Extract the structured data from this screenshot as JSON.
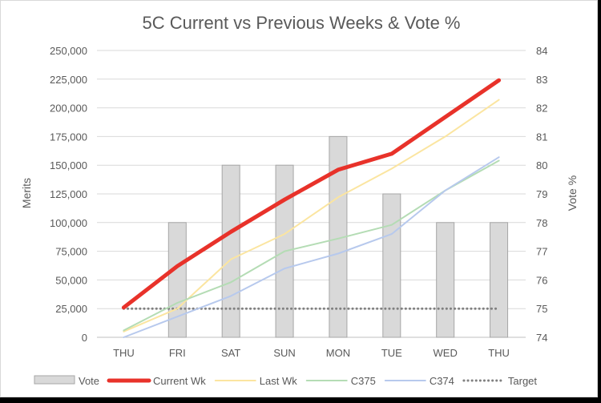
{
  "chart_data": {
    "type": "bar",
    "title": "5C Current vs Previous Weeks & Vote %",
    "ylabel": "Merits",
    "y2label": "Vote %",
    "categories": [
      "THU",
      "FRI",
      "SAT",
      "SUN",
      "MON",
      "TUE",
      "WED",
      "THU"
    ],
    "ylim": [
      0,
      250000
    ],
    "yticks": [
      0,
      25000,
      50000,
      75000,
      100000,
      125000,
      150000,
      175000,
      200000,
      225000,
      250000
    ],
    "ytick_labels": [
      "0",
      "25,000",
      "50,000",
      "75,000",
      "100,000",
      "125,000",
      "150,000",
      "175,000",
      "200,000",
      "225,000",
      "250,000"
    ],
    "y2lim": [
      74,
      84
    ],
    "y2ticks": [
      74,
      75,
      76,
      77,
      78,
      79,
      80,
      81,
      82,
      83,
      84
    ],
    "y2tick_labels": [
      "74",
      "75",
      "76",
      "77",
      "78",
      "79",
      "80",
      "81",
      "82",
      "83",
      "84"
    ],
    "grid": true,
    "legend_position": "bottom",
    "series": [
      {
        "name": "Vote",
        "kind": "bar",
        "axis": "right",
        "color": "#d9d9d9",
        "edge": "#a6a6a6",
        "values": [
          null,
          78,
          80,
          80,
          81,
          79,
          78,
          78
        ]
      },
      {
        "name": "Current Wk",
        "kind": "line",
        "axis": "left",
        "color": "#e8322a",
        "values": [
          26000,
          62000,
          92000,
          120000,
          146000,
          160000,
          192000,
          224000
        ]
      },
      {
        "name": "Last Wk",
        "kind": "line",
        "axis": "left",
        "color": "#fbe5a0",
        "values": [
          5000,
          25000,
          68000,
          90000,
          122000,
          147000,
          175000,
          207000
        ]
      },
      {
        "name": "C375",
        "kind": "line",
        "axis": "left",
        "color": "#b4dcb4",
        "values": [
          6000,
          30000,
          48000,
          75000,
          86000,
          98000,
          128000,
          154000
        ]
      },
      {
        "name": "C374",
        "kind": "line",
        "axis": "left",
        "color": "#b7c9ed",
        "values": [
          0,
          18000,
          36000,
          60000,
          73000,
          90000,
          128000,
          157000
        ]
      },
      {
        "name": "Target",
        "kind": "dotted-line",
        "axis": "right",
        "color": "#808080",
        "values": [
          75,
          75,
          75,
          75,
          75,
          75,
          75,
          75
        ]
      }
    ]
  }
}
